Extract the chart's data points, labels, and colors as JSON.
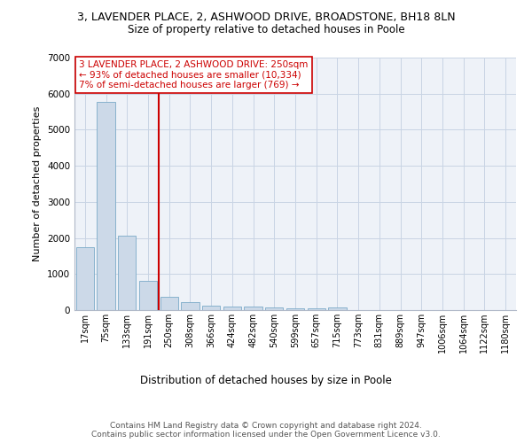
{
  "title1": "3, LAVENDER PLACE, 2, ASHWOOD DRIVE, BROADSTONE, BH18 8LN",
  "title2": "Size of property relative to detached houses in Poole",
  "xlabel": "Distribution of detached houses by size in Poole",
  "ylabel": "Number of detached properties",
  "categories": [
    "17sqm",
    "75sqm",
    "133sqm",
    "191sqm",
    "250sqm",
    "308sqm",
    "366sqm",
    "424sqm",
    "482sqm",
    "540sqm",
    "599sqm",
    "657sqm",
    "715sqm",
    "773sqm",
    "831sqm",
    "889sqm",
    "947sqm",
    "1006sqm",
    "1064sqm",
    "1122sqm",
    "1180sqm"
  ],
  "values": [
    1750,
    5780,
    2060,
    820,
    360,
    210,
    130,
    100,
    90,
    70,
    55,
    55,
    70,
    0,
    0,
    0,
    0,
    0,
    0,
    0,
    0
  ],
  "bar_color": "#ccd9e8",
  "bar_edge_color": "#7aaac8",
  "vline_x_idx": 4,
  "vline_color": "#cc0000",
  "annotation_text": "3 LAVENDER PLACE, 2 ASHWOOD DRIVE: 250sqm\n← 93% of detached houses are smaller (10,334)\n7% of semi-detached houses are larger (769) →",
  "annotation_box_color": "#ffffff",
  "annotation_box_edge": "#cc0000",
  "annotation_text_color": "#cc0000",
  "ylim": [
    0,
    7000
  ],
  "yticks": [
    0,
    1000,
    2000,
    3000,
    4000,
    5000,
    6000,
    7000
  ],
  "footer": "Contains HM Land Registry data © Crown copyright and database right 2024.\nContains public sector information licensed under the Open Government Licence v3.0.",
  "bg_color": "#eef2f8",
  "grid_color": "#c8d4e4",
  "title1_fontsize": 9,
  "title2_fontsize": 8.5,
  "ylabel_fontsize": 8,
  "xlabel_fontsize": 8.5,
  "tick_fontsize": 7,
  "annotation_fontsize": 7.5,
  "footer_fontsize": 6.5
}
